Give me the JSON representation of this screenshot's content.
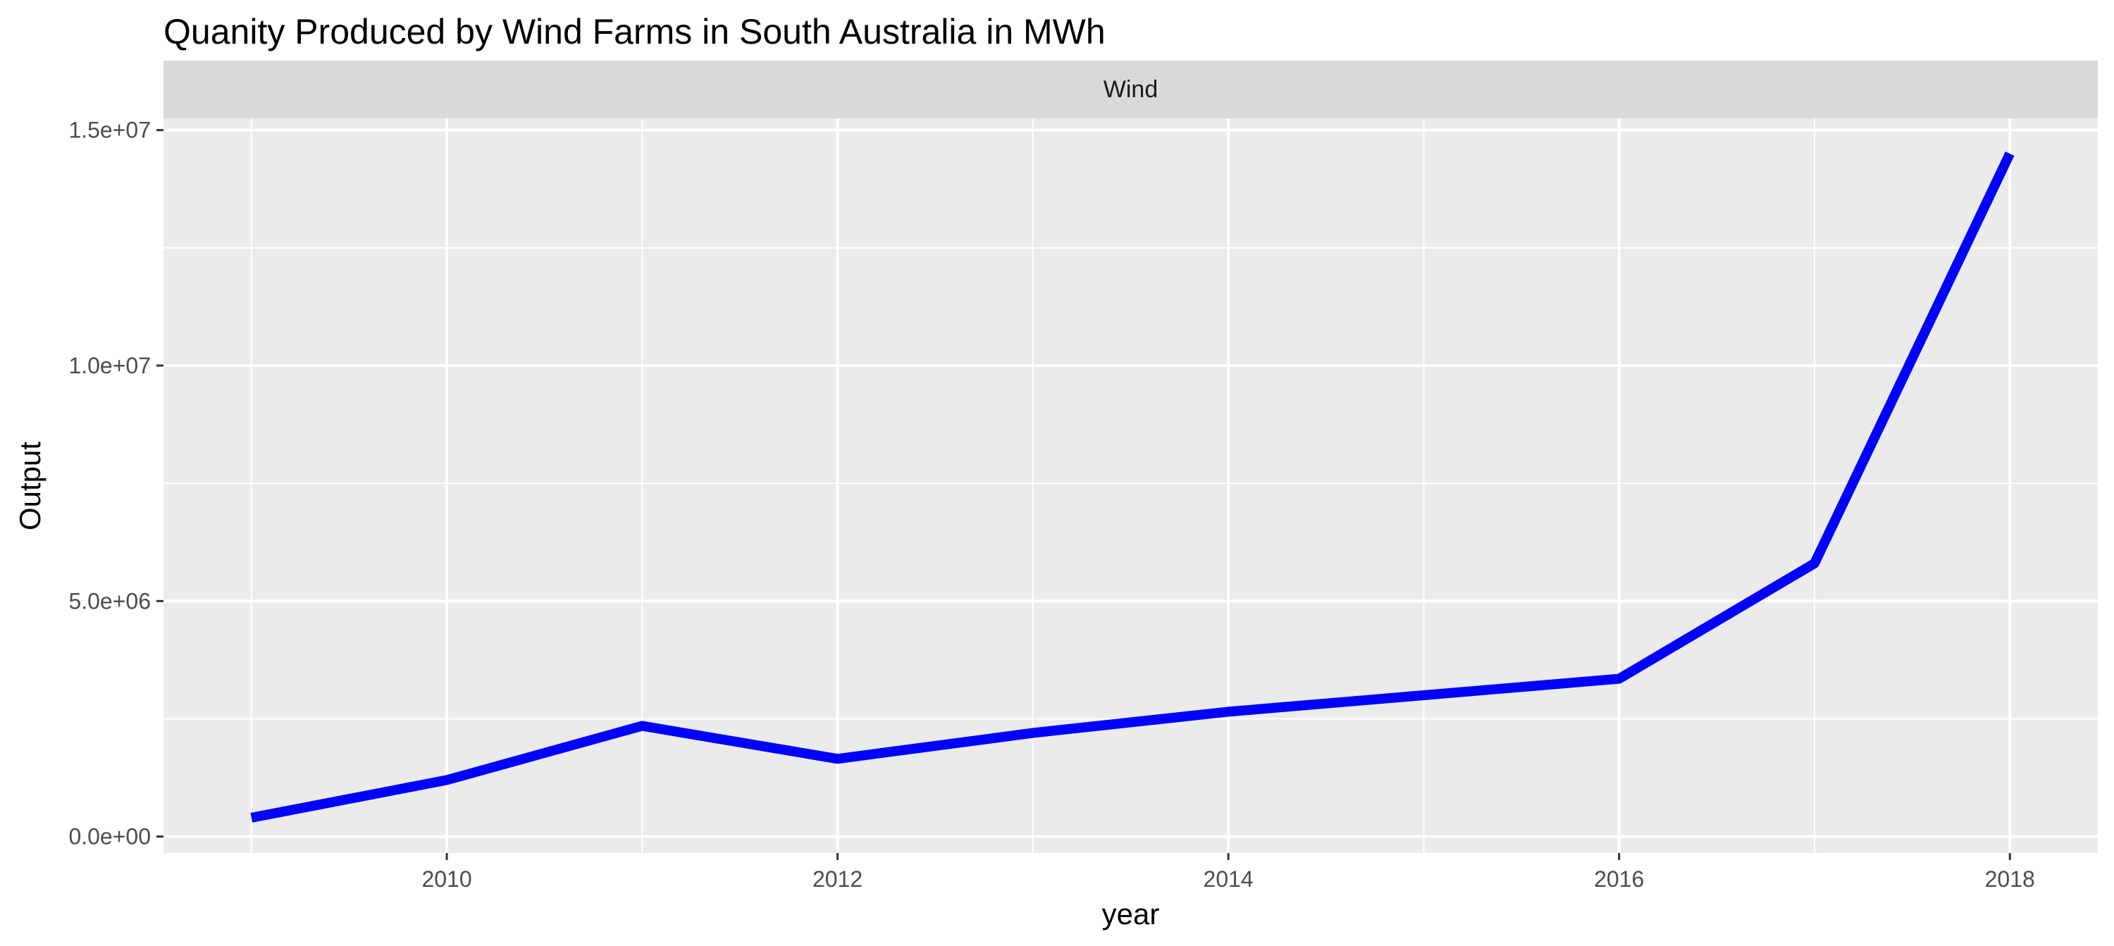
{
  "chart_data": {
    "type": "line",
    "title": "Quanity Produced by Wind Farms in South Australia in MWh",
    "facet_label": "Wind",
    "xlabel": "year",
    "ylabel": "Output",
    "x": [
      2009,
      2010,
      2011,
      2012,
      2013,
      2014,
      2015,
      2016,
      2017,
      2018
    ],
    "series": [
      {
        "values": [
          400000,
          1200000,
          2350000,
          1650000,
          2200000,
          2650000,
          3000000,
          3350000,
          5800000,
          14500000
        ],
        "color": "#0000ff"
      }
    ],
    "xlim": [
      2008.55,
      2018.45
    ],
    "ylim": [
      -350000,
      15250000
    ],
    "x_ticks": [
      2010,
      2012,
      2014,
      2016,
      2018
    ],
    "x_tick_labels": [
      "2010",
      "2012",
      "2014",
      "2016",
      "2018"
    ],
    "y_ticks": [
      0,
      5000000,
      10000000,
      15000000
    ],
    "y_tick_labels": [
      "0.0e+00",
      "5.0e+06",
      "1.0e+07",
      "1.5e+07"
    ],
    "grid": true,
    "panel_color": "#ebebeb",
    "strip_color": "#d9d9d9"
  }
}
